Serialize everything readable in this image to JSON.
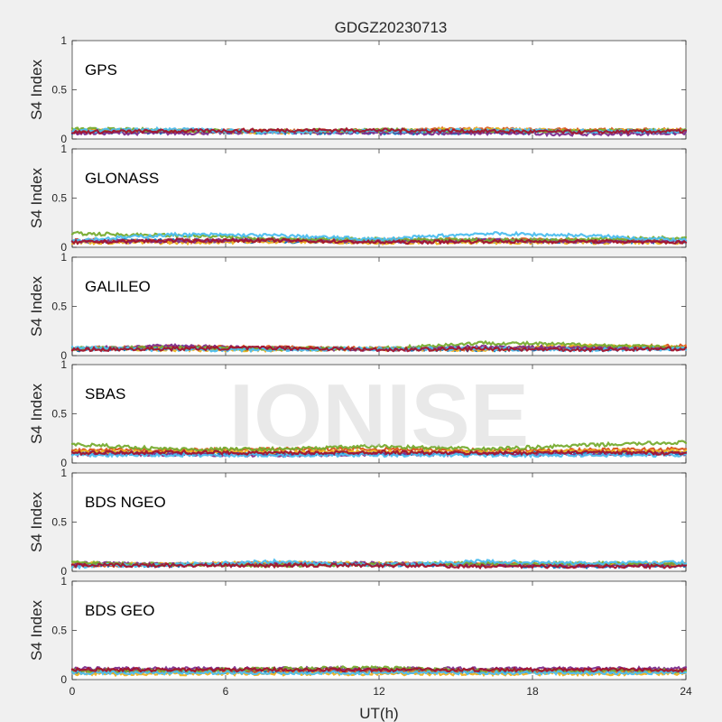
{
  "chart_data": {
    "type": "scatter",
    "title": "GDGZ20230713",
    "xlabel": "UT(h)",
    "ylabel": "S4 Index",
    "xlim": [
      0,
      24
    ],
    "ylim": [
      0,
      1
    ],
    "xticks": [
      "0",
      "6",
      "12",
      "18",
      "24"
    ],
    "yticks": [
      "0",
      "0.5",
      "1"
    ],
    "watermark": "IONISE",
    "colors": [
      "#0072BD",
      "#D95319",
      "#EDB120",
      "#7E2F8E",
      "#77AC30",
      "#4DBEEE",
      "#A2142F"
    ],
    "panels": [
      {
        "name": "GPS",
        "series": [
          {
            "x": [
              0,
              4,
              8,
              12,
              16,
              20,
              24
            ],
            "y": [
              0.07,
              0.07,
              0.07,
              0.06,
              0.07,
              0.07,
              0.07
            ]
          },
          {
            "x": [
              0,
              4,
              8,
              12,
              16,
              20,
              24
            ],
            "y": [
              0.08,
              0.09,
              0.08,
              0.09,
              0.1,
              0.09,
              0.09
            ]
          },
          {
            "x": [
              0,
              4,
              8,
              12,
              16,
              20,
              24
            ],
            "y": [
              0.09,
              0.08,
              0.07,
              0.08,
              0.1,
              0.08,
              0.09
            ]
          },
          {
            "x": [
              0,
              4,
              8,
              12,
              16,
              20,
              24
            ],
            "y": [
              0.06,
              0.06,
              0.07,
              0.06,
              0.06,
              0.05,
              0.06
            ]
          },
          {
            "x": [
              0,
              4,
              8,
              12,
              16,
              20,
              24
            ],
            "y": [
              0.1,
              0.09,
              0.08,
              0.09,
              0.08,
              0.08,
              0.09
            ]
          },
          {
            "x": [
              0,
              4,
              8,
              12,
              16,
              20,
              24
            ],
            "y": [
              0.08,
              0.1,
              0.07,
              0.08,
              0.09,
              0.08,
              0.08
            ]
          },
          {
            "x": [
              0,
              4,
              8,
              12,
              16,
              20,
              24
            ],
            "y": [
              0.07,
              0.08,
              0.09,
              0.09,
              0.08,
              0.07,
              0.08
            ]
          }
        ]
      },
      {
        "name": "GLONASS",
        "series": [
          {
            "x": [
              0,
              4,
              8,
              12,
              16,
              20,
              24
            ],
            "y": [
              0.06,
              0.07,
              0.06,
              0.06,
              0.07,
              0.06,
              0.06
            ]
          },
          {
            "x": [
              0,
              4,
              8,
              12,
              16,
              20,
              24
            ],
            "y": [
              0.07,
              0.06,
              0.07,
              0.07,
              0.08,
              0.07,
              0.07
            ]
          },
          {
            "x": [
              0,
              4,
              8,
              12,
              16,
              20,
              24
            ],
            "y": [
              0.05,
              0.05,
              0.06,
              0.05,
              0.05,
              0.05,
              0.05
            ]
          },
          {
            "x": [
              0,
              4,
              8,
              12,
              16,
              20,
              24
            ],
            "y": [
              0.06,
              0.06,
              0.08,
              0.06,
              0.07,
              0.06,
              0.06
            ]
          },
          {
            "x": [
              0,
              4,
              8,
              12,
              16,
              20,
              24
            ],
            "y": [
              0.14,
              0.12,
              0.09,
              0.08,
              0.07,
              0.08,
              0.1
            ]
          },
          {
            "x": [
              0,
              4,
              8,
              12,
              16,
              20,
              24
            ],
            "y": [
              0.07,
              0.13,
              0.12,
              0.08,
              0.14,
              0.12,
              0.07
            ]
          },
          {
            "x": [
              0,
              4,
              8,
              12,
              16,
              20,
              24
            ],
            "y": [
              0.05,
              0.07,
              0.07,
              0.05,
              0.06,
              0.06,
              0.05
            ]
          }
        ]
      },
      {
        "name": "GALILEO",
        "series": [
          {
            "x": [
              0,
              4,
              8,
              12,
              16,
              20,
              24
            ],
            "y": [
              0.06,
              0.08,
              0.07,
              0.07,
              0.06,
              0.07,
              0.07
            ]
          },
          {
            "x": [
              0,
              4,
              8,
              12,
              16,
              20,
              24
            ],
            "y": [
              0.07,
              0.09,
              0.08,
              0.07,
              0.07,
              0.08,
              0.1
            ]
          },
          {
            "x": [
              0,
              4,
              8,
              12,
              16,
              20,
              24
            ],
            "y": [
              0.08,
              0.06,
              0.06,
              0.07,
              0.06,
              0.1,
              0.08
            ]
          },
          {
            "x": [
              0,
              4,
              8,
              12,
              16,
              20,
              24
            ],
            "y": [
              0.07,
              0.1,
              0.07,
              0.06,
              0.09,
              0.08,
              0.07
            ]
          },
          {
            "x": [
              0,
              4,
              8,
              12,
              16,
              20,
              24
            ],
            "y": [
              0.07,
              0.08,
              0.07,
              0.07,
              0.13,
              0.11,
              0.08
            ]
          },
          {
            "x": [
              0,
              4,
              8,
              12,
              16,
              20,
              24
            ],
            "y": [
              0.08,
              0.06,
              0.06,
              0.07,
              0.07,
              0.06,
              0.07
            ]
          },
          {
            "x": [
              0,
              4,
              8,
              12,
              16,
              20,
              24
            ],
            "y": [
              0.06,
              0.07,
              0.08,
              0.06,
              0.07,
              0.06,
              0.07
            ]
          }
        ]
      },
      {
        "name": "SBAS",
        "series": [
          {
            "x": [
              0,
              4,
              8,
              12,
              16,
              20,
              24
            ],
            "y": [
              0.1,
              0.1,
              0.09,
              0.1,
              0.1,
              0.1,
              0.1
            ]
          },
          {
            "x": [
              0,
              4,
              8,
              12,
              16,
              20,
              24
            ],
            "y": [
              0.13,
              0.13,
              0.14,
              0.14,
              0.13,
              0.13,
              0.14
            ]
          },
          {
            "x": [
              0,
              4,
              8,
              12,
              16,
              20,
              24
            ],
            "y": [
              0.11,
              0.12,
              0.11,
              0.12,
              0.11,
              0.12,
              0.12
            ]
          },
          {
            "x": [
              0,
              4,
              8,
              12,
              16,
              20,
              24
            ],
            "y": [
              0.09,
              0.09,
              0.08,
              0.09,
              0.09,
              0.09,
              0.09
            ]
          },
          {
            "x": [
              0,
              4,
              8,
              12,
              16,
              20,
              24
            ],
            "y": [
              0.19,
              0.14,
              0.14,
              0.17,
              0.14,
              0.18,
              0.21
            ]
          },
          {
            "x": [
              0,
              4,
              8,
              12,
              16,
              20,
              24
            ],
            "y": [
              0.08,
              0.08,
              0.08,
              0.08,
              0.08,
              0.08,
              0.08
            ]
          },
          {
            "x": [
              0,
              4,
              8,
              12,
              16,
              20,
              24
            ],
            "y": [
              0.1,
              0.11,
              0.1,
              0.11,
              0.1,
              0.11,
              0.1
            ]
          }
        ]
      },
      {
        "name": "BDS NGEO",
        "series": [
          {
            "x": [
              0,
              4,
              8,
              12,
              16,
              20,
              24
            ],
            "y": [
              0.07,
              0.06,
              0.08,
              0.07,
              0.06,
              0.05,
              0.06
            ]
          },
          {
            "x": [
              0,
              4,
              8,
              12,
              16,
              20,
              24
            ],
            "y": [
              0.06,
              0.07,
              0.08,
              0.07,
              0.08,
              0.07,
              0.07
            ]
          },
          {
            "x": [
              0,
              4,
              8,
              12,
              16,
              20,
              24
            ],
            "y": [
              0.08,
              0.07,
              0.09,
              0.08,
              0.07,
              0.07,
              0.08
            ]
          },
          {
            "x": [
              0,
              4,
              8,
              12,
              16,
              20,
              24
            ],
            "y": [
              0.08,
              0.07,
              0.07,
              0.08,
              0.07,
              0.06,
              0.07
            ]
          },
          {
            "x": [
              0,
              4,
              8,
              12,
              16,
              20,
              24
            ],
            "y": [
              0.09,
              0.07,
              0.06,
              0.07,
              0.08,
              0.08,
              0.08
            ]
          },
          {
            "x": [
              0,
              4,
              8,
              12,
              16,
              20,
              24
            ],
            "y": [
              0.05,
              0.07,
              0.1,
              0.06,
              0.1,
              0.08,
              0.09
            ]
          },
          {
            "x": [
              0,
              4,
              8,
              12,
              16,
              20,
              24
            ],
            "y": [
              0.06,
              0.06,
              0.06,
              0.06,
              0.05,
              0.05,
              0.05
            ]
          }
        ]
      },
      {
        "name": "BDS GEO",
        "series": [
          {
            "x": [
              0,
              4,
              8,
              12,
              16,
              20,
              24
            ],
            "y": [
              0.08,
              0.08,
              0.08,
              0.08,
              0.08,
              0.08,
              0.08
            ]
          },
          {
            "x": [
              0,
              4,
              8,
              12,
              16,
              20,
              24
            ],
            "y": [
              0.09,
              0.09,
              0.09,
              0.09,
              0.09,
              0.09,
              0.09
            ]
          },
          {
            "x": [
              0,
              4,
              8,
              12,
              16,
              20,
              24
            ],
            "y": [
              0.06,
              0.06,
              0.06,
              0.06,
              0.06,
              0.06,
              0.06
            ]
          },
          {
            "x": [
              0,
              4,
              8,
              12,
              16,
              20,
              24
            ],
            "y": [
              0.11,
              0.11,
              0.11,
              0.11,
              0.11,
              0.11,
              0.11
            ]
          },
          {
            "x": [
              0,
              4,
              8,
              12,
              16,
              20,
              24
            ],
            "y": [
              0.09,
              0.09,
              0.11,
              0.12,
              0.09,
              0.09,
              0.09
            ]
          },
          {
            "x": [
              0,
              4,
              8,
              12,
              16,
              20,
              24
            ],
            "y": [
              0.07,
              0.07,
              0.07,
              0.07,
              0.07,
              0.07,
              0.07
            ]
          },
          {
            "x": [
              0,
              4,
              8,
              12,
              16,
              20,
              24
            ],
            "y": [
              0.1,
              0.1,
              0.1,
              0.1,
              0.1,
              0.1,
              0.1
            ]
          }
        ]
      }
    ]
  }
}
